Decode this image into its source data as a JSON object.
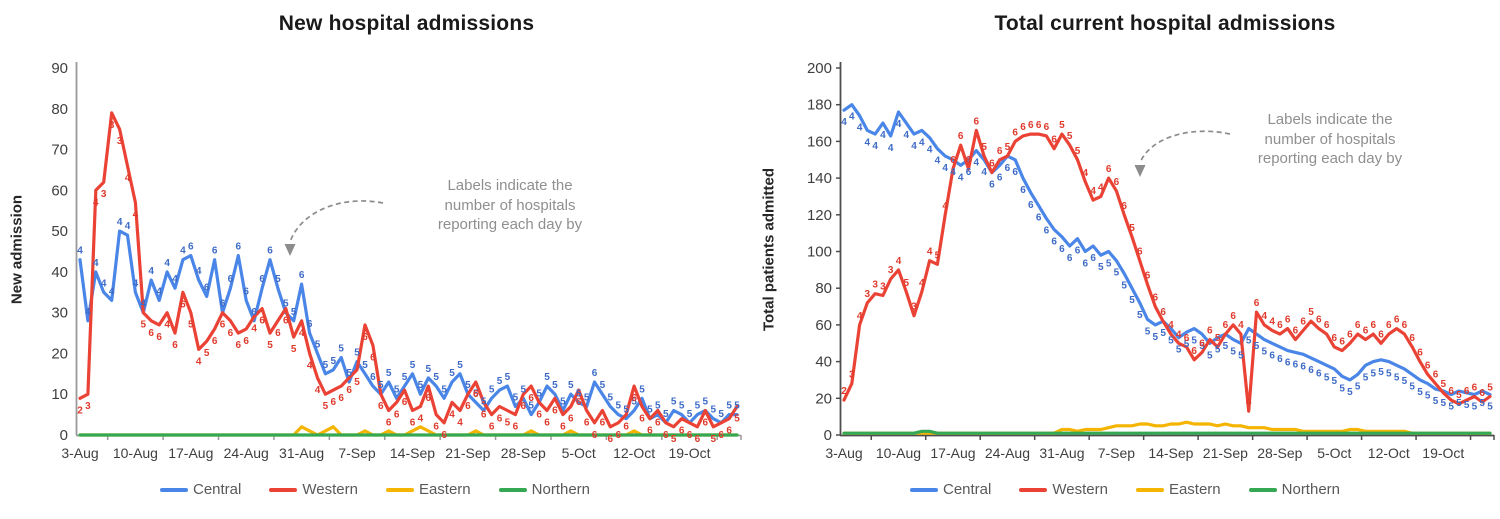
{
  "chart_data": [
    {
      "type": "line",
      "title": "New hospital admissions",
      "ylabel": "New admission",
      "ylim": [
        0,
        90
      ],
      "ytick_step": 10,
      "n_points": 84,
      "x_start": "3-Aug",
      "x_tick_labels": [
        "3-Aug",
        "10-Aug",
        "17-Aug",
        "24-Aug",
        "31-Aug",
        "7-Sep",
        "14-Sep",
        "21-Sep",
        "28-Sep",
        "5-Oct",
        "12-Oct",
        "19-Oct"
      ],
      "x_tick_indices": [
        0,
        7,
        14,
        21,
        28,
        35,
        42,
        49,
        56,
        63,
        70,
        77
      ],
      "annotation": "Labels indicate the\nnumber of hospitals\nreporting each day by",
      "legend_position": "bottom",
      "grid": false,
      "series": [
        {
          "name": "Central",
          "color": "#4a86e8",
          "label_color": "#3d6bc7",
          "labels_position": "above",
          "values": [
            43,
            28,
            40,
            35,
            33,
            50,
            49,
            35,
            30,
            38,
            33,
            40,
            36,
            43,
            44,
            38,
            34,
            43,
            30,
            36,
            44,
            33,
            28,
            36,
            43,
            36,
            30,
            28,
            37,
            25,
            20,
            15,
            16,
            19,
            13,
            18,
            15,
            12,
            10,
            13,
            9,
            12,
            15,
            10,
            14,
            12,
            9,
            13,
            15,
            10,
            8,
            6,
            9,
            11,
            12,
            7,
            9,
            5,
            8,
            12,
            10,
            6,
            10,
            8,
            7,
            13,
            10,
            7,
            5,
            4,
            6,
            9,
            4,
            5,
            3,
            6,
            5,
            3,
            5,
            6,
            4,
            3,
            5,
            5
          ],
          "hospital_counts": [
            4,
            4,
            4,
            4,
            4,
            4,
            4,
            4,
            4,
            4,
            4,
            4,
            4,
            4,
            6,
            4,
            6,
            6,
            6,
            6,
            6,
            6,
            6,
            6,
            6,
            5,
            5,
            5,
            6,
            6,
            5,
            5,
            5,
            5,
            5,
            5,
            5,
            6,
            5,
            5,
            5,
            5,
            5,
            5,
            5,
            5,
            5,
            5,
            5,
            5,
            5,
            5,
            5,
            5,
            5,
            5,
            5,
            5,
            5,
            5,
            5,
            5,
            5,
            5,
            5,
            6,
            5,
            5,
            5,
            5,
            5,
            5,
            5,
            5,
            5,
            5,
            5,
            5,
            5,
            5,
            5,
            5,
            5,
            5
          ]
        },
        {
          "name": "Western",
          "color": "#ea4335",
          "label_color": "#e03a2c",
          "labels_position": "below",
          "values": [
            9,
            10,
            60,
            62,
            79,
            75,
            66,
            57,
            30,
            28,
            27,
            30,
            25,
            35,
            30,
            21,
            23,
            26,
            30,
            28,
            25,
            26,
            29,
            31,
            25,
            28,
            31,
            24,
            28,
            20,
            14,
            10,
            11,
            12,
            14,
            16,
            27,
            22,
            10,
            6,
            8,
            11,
            6,
            7,
            12,
            5,
            3,
            8,
            6,
            10,
            13,
            8,
            5,
            7,
            6,
            5,
            10,
            12,
            8,
            6,
            9,
            5,
            7,
            11,
            6,
            3,
            6,
            2,
            3,
            5,
            12,
            7,
            4,
            6,
            3,
            2,
            4,
            3,
            2,
            6,
            2,
            3,
            4,
            7
          ],
          "hospital_counts": [
            2,
            3,
            4,
            3,
            3,
            3,
            4,
            4,
            5,
            6,
            6,
            4,
            6,
            6,
            5,
            4,
            5,
            6,
            6,
            6,
            6,
            6,
            4,
            6,
            5,
            6,
            6,
            5,
            4,
            4,
            4,
            5,
            6,
            6,
            6,
            5,
            6,
            6,
            6,
            6,
            6,
            6,
            6,
            4,
            6,
            6,
            6,
            4,
            4,
            6,
            6,
            6,
            6,
            6,
            5,
            6,
            6,
            6,
            6,
            6,
            6,
            6,
            6,
            6,
            6,
            6,
            6,
            6,
            6,
            6,
            6,
            6,
            6,
            6,
            6,
            5,
            6,
            6,
            6,
            6,
            5,
            6,
            6,
            5
          ]
        },
        {
          "name": "Eastern",
          "color": "#f4b400",
          "labels_position": "none",
          "values": [
            0,
            0,
            0,
            0,
            0,
            0,
            0,
            0,
            0,
            0,
            0,
            0,
            0,
            0,
            0,
            0,
            0,
            0,
            0,
            0,
            0,
            0,
            0,
            0,
            0,
            0,
            0,
            0,
            2,
            1,
            0,
            1,
            2,
            0,
            0,
            0,
            1,
            0,
            0,
            1,
            0,
            0,
            1,
            2,
            1,
            0,
            0,
            0,
            0,
            0,
            1,
            0,
            0,
            0,
            0,
            0,
            0,
            1,
            0,
            0,
            0,
            0,
            1,
            0,
            0,
            0,
            0,
            0,
            0,
            0,
            1,
            0,
            0,
            0,
            0,
            0,
            0,
            0,
            0,
            0,
            0,
            0,
            0,
            0
          ]
        },
        {
          "name": "Northern",
          "color": "#34a853",
          "labels_position": "none",
          "values": [
            0,
            0,
            0,
            0,
            0,
            0,
            0,
            0,
            0,
            0,
            0,
            0,
            0,
            0,
            0,
            0,
            0,
            0,
            0,
            0,
            0,
            0,
            0,
            0,
            0,
            0,
            0,
            0,
            0,
            0,
            0,
            0,
            0,
            0,
            0,
            0,
            0,
            0,
            0,
            0,
            0,
            0,
            0,
            0,
            0,
            0,
            0,
            0,
            0,
            0,
            0,
            0,
            0,
            0,
            0,
            0,
            0,
            0,
            0,
            0,
            0,
            0,
            0,
            0,
            0,
            0,
            0,
            0,
            0,
            0,
            0,
            0,
            0,
            0,
            0,
            0,
            0,
            0,
            0,
            0,
            0,
            0,
            0,
            0
          ]
        }
      ]
    },
    {
      "type": "line",
      "title": "Total current hospital admissions",
      "ylabel": "Total patients admitted",
      "ylim": [
        0,
        200
      ],
      "ytick_step": 20,
      "n_points": 84,
      "x_start": "3-Aug",
      "x_tick_labels": [
        "3-Aug",
        "10-Aug",
        "17-Aug",
        "24-Aug",
        "31-Aug",
        "7-Sep",
        "14-Sep",
        "21-Sep",
        "28-Sep",
        "5-Oct",
        "12-Oct",
        "19-Oct"
      ],
      "x_tick_indices": [
        0,
        7,
        14,
        21,
        28,
        35,
        42,
        49,
        56,
        63,
        70,
        77
      ],
      "annotation": "Labels indicate the\nnumber of hospitals\nreporting each day by",
      "legend_position": "bottom",
      "grid": false,
      "series": [
        {
          "name": "Central",
          "color": "#4a86e8",
          "label_color": "#3d6bc7",
          "labels_position": "below",
          "values": [
            177,
            180,
            174,
            166,
            164,
            170,
            163,
            176,
            170,
            164,
            166,
            162,
            156,
            152,
            150,
            147,
            150,
            155,
            150,
            143,
            147,
            152,
            150,
            140,
            132,
            125,
            118,
            112,
            108,
            103,
            107,
            100,
            103,
            98,
            100,
            95,
            88,
            80,
            72,
            63,
            60,
            62,
            58,
            53,
            56,
            58,
            55,
            50,
            53,
            55,
            52,
            50,
            58,
            55,
            52,
            50,
            48,
            46,
            45,
            44,
            42,
            40,
            38,
            36,
            32,
            30,
            33,
            38,
            40,
            41,
            40,
            38,
            36,
            33,
            30,
            28,
            25,
            24,
            22,
            24,
            23,
            22,
            24,
            22
          ],
          "hospital_counts": [
            4,
            4,
            4,
            4,
            4,
            4,
            4,
            4,
            4,
            4,
            4,
            4,
            4,
            4,
            4,
            4,
            6,
            4,
            4,
            6,
            6,
            6,
            6,
            6,
            6,
            6,
            6,
            6,
            6,
            6,
            6,
            6,
            6,
            5,
            5,
            5,
            5,
            5,
            5,
            5,
            5,
            5,
            5,
            5,
            5,
            5,
            5,
            5,
            5,
            5,
            5,
            5,
            5,
            5,
            5,
            6,
            6,
            6,
            6,
            6,
            6,
            6,
            5,
            5,
            5,
            5,
            5,
            5,
            5,
            5,
            5,
            5,
            5,
            5,
            5,
            5,
            5,
            5,
            5,
            5,
            5,
            5,
            5,
            5
          ]
        },
        {
          "name": "Western",
          "color": "#ea4335",
          "label_color": "#e03a2c",
          "labels_position": "above",
          "values": [
            19,
            28,
            60,
            72,
            77,
            76,
            85,
            90,
            78,
            65,
            78,
            95,
            93,
            120,
            145,
            158,
            145,
            166,
            152,
            143,
            150,
            152,
            160,
            163,
            164,
            164,
            163,
            156,
            164,
            158,
            150,
            138,
            128,
            130,
            140,
            133,
            120,
            108,
            95,
            82,
            70,
            62,
            55,
            50,
            48,
            41,
            45,
            52,
            48,
            55,
            60,
            55,
            13,
            67,
            60,
            57,
            55,
            58,
            52,
            57,
            62,
            58,
            55,
            48,
            46,
            50,
            55,
            52,
            55,
            50,
            55,
            58,
            55,
            48,
            40,
            33,
            28,
            23,
            19,
            17,
            19,
            21,
            18,
            21
          ],
          "hospital_counts": [
            2,
            3,
            4,
            3,
            3,
            3,
            3,
            4,
            5,
            3,
            4,
            4,
            5,
            4,
            6,
            6,
            6,
            6,
            5,
            6,
            6,
            5,
            6,
            6,
            6,
            6,
            6,
            6,
            5,
            5,
            5,
            4,
            4,
            4,
            6,
            6,
            6,
            5,
            6,
            6,
            6,
            6,
            4,
            4,
            6,
            6,
            6,
            6,
            5,
            6,
            6,
            4,
            4,
            6,
            4,
            4,
            6,
            6,
            6,
            6,
            5,
            6,
            6,
            6,
            6,
            6,
            6,
            6,
            6,
            6,
            6,
            6,
            6,
            6,
            6,
            6,
            6,
            5,
            6,
            5,
            6,
            6,
            6,
            5
          ]
        },
        {
          "name": "Eastern",
          "color": "#f4b400",
          "labels_position": "none",
          "values": [
            1,
            1,
            1,
            1,
            1,
            1,
            1,
            1,
            1,
            1,
            1,
            1,
            1,
            1,
            1,
            1,
            1,
            1,
            1,
            1,
            1,
            1,
            1,
            1,
            1,
            1,
            1,
            1,
            3,
            3,
            2,
            3,
            3,
            3,
            4,
            5,
            5,
            5,
            6,
            6,
            5,
            5,
            6,
            6,
            7,
            6,
            6,
            6,
            5,
            6,
            5,
            5,
            4,
            4,
            4,
            3,
            3,
            3,
            3,
            2,
            2,
            2,
            2,
            2,
            2,
            3,
            3,
            2,
            2,
            2,
            2,
            2,
            2,
            1,
            1,
            1,
            1,
            1,
            1,
            1,
            1,
            1,
            1,
            1
          ]
        },
        {
          "name": "Northern",
          "color": "#34a853",
          "labels_position": "none",
          "values": [
            1,
            1,
            1,
            1,
            1,
            1,
            1,
            1,
            1,
            1,
            2,
            2,
            1,
            1,
            1,
            1,
            1,
            1,
            1,
            1,
            1,
            1,
            1,
            1,
            1,
            1,
            1,
            1,
            1,
            1,
            1,
            1,
            1,
            1,
            1,
            1,
            1,
            1,
            1,
            1,
            1,
            1,
            1,
            1,
            1,
            1,
            1,
            1,
            1,
            1,
            1,
            1,
            1,
            1,
            1,
            1,
            1,
            1,
            1,
            1,
            1,
            1,
            1,
            1,
            1,
            1,
            1,
            1,
            1,
            1,
            1,
            1,
            1,
            1,
            1,
            1,
            1,
            1,
            1,
            1,
            1,
            1,
            1,
            1
          ]
        }
      ]
    }
  ]
}
